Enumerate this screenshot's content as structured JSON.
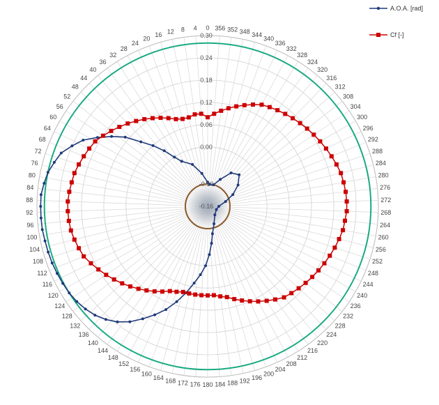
{
  "chart_data": {
    "type": "polar-line",
    "angle_ticks": [
      "0",
      "4",
      "8",
      "12",
      "16",
      "20",
      "24",
      "28",
      "32",
      "36",
      "40",
      "44",
      "48",
      "52",
      "56",
      "60",
      "64",
      "68",
      "72",
      "76",
      "80",
      "84",
      "88",
      "92",
      "96",
      "100",
      "104",
      "108",
      "112",
      "116",
      "120",
      "124",
      "128",
      "132",
      "136",
      "140",
      "144",
      "148",
      "152",
      "156",
      "160",
      "164",
      "168",
      "172",
      "176",
      "180",
      "184",
      "188",
      "192",
      "196",
      "200",
      "204",
      "208",
      "212",
      "216",
      "220",
      "224",
      "228",
      "232",
      "236",
      "240",
      "244",
      "248",
      "252",
      "256",
      "260",
      "264",
      "268",
      "272",
      "276",
      "280",
      "284",
      "288",
      "292",
      "296",
      "300",
      "304",
      "308",
      "312",
      "316",
      "320",
      "324",
      "328",
      "332",
      "336",
      "340",
      "344",
      "348",
      "352",
      "356"
    ],
    "radial_ticks": [
      "-0.16",
      "-0.10",
      "0.00",
      "0.06",
      "0.12",
      "0.18",
      "0.24",
      "0.30"
    ],
    "radial_range": [
      -0.16,
      0.3
    ],
    "angle_direction": "counterclockwise",
    "angle_zero": "top",
    "grid": true,
    "legend_position": "top-right",
    "series": [
      {
        "name": "A.O.A. [rad]",
        "color": "#1f3a7a",
        "marker": "circle-small",
        "points": [
          [
            0,
            -0.095
          ],
          [
            10,
            -0.07
          ],
          [
            20,
            -0.04
          ],
          [
            30,
            -0.02
          ],
          [
            34,
            0.0
          ],
          [
            38,
            0.03
          ],
          [
            42,
            0.06
          ],
          [
            46,
            0.09
          ],
          [
            50,
            0.13
          ],
          [
            54,
            0.16
          ],
          [
            58,
            0.19
          ],
          [
            62,
            0.22
          ],
          [
            66,
            0.24
          ],
          [
            70,
            0.26
          ],
          [
            74,
            0.27
          ],
          [
            78,
            0.28
          ],
          [
            82,
            0.285
          ],
          [
            86,
            0.29
          ],
          [
            90,
            0.29
          ],
          [
            94,
            0.29
          ],
          [
            98,
            0.29
          ],
          [
            102,
            0.288
          ],
          [
            106,
            0.287
          ],
          [
            110,
            0.286
          ],
          [
            114,
            0.284
          ],
          [
            118,
            0.282
          ],
          [
            122,
            0.28
          ],
          [
            126,
            0.276
          ],
          [
            130,
            0.27
          ],
          [
            134,
            0.262
          ],
          [
            138,
            0.25
          ],
          [
            142,
            0.235
          ],
          [
            146,
            0.215
          ],
          [
            150,
            0.19
          ],
          [
            154,
            0.165
          ],
          [
            158,
            0.14
          ],
          [
            162,
            0.11
          ],
          [
            166,
            0.08
          ],
          [
            170,
            0.05
          ],
          [
            174,
            0.025
          ],
          [
            178,
            0.0
          ],
          [
            182,
            -0.03
          ],
          [
            186,
            -0.06
          ],
          [
            190,
            -0.085
          ],
          [
            200,
            -0.11
          ],
          [
            220,
            -0.13
          ],
          [
            250,
            -0.135
          ],
          [
            270,
            -0.13
          ],
          [
            285,
            -0.11
          ],
          [
            295,
            -0.085
          ],
          [
            305,
            -0.06
          ],
          [
            315,
            -0.04
          ],
          [
            325,
            -0.05
          ],
          [
            335,
            -0.08
          ],
          [
            345,
            -0.1
          ],
          [
            355,
            -0.1
          ],
          [
            360,
            -0.095
          ]
        ]
      },
      {
        "name": "Cf [-]",
        "color": "#cc0000",
        "marker": "square",
        "points": [
          [
            0,
            0.08
          ],
          [
            4,
            0.09
          ],
          [
            8,
            0.09
          ],
          [
            12,
            0.085
          ],
          [
            16,
            0.085
          ],
          [
            20,
            0.09
          ],
          [
            24,
            0.1
          ],
          [
            28,
            0.11
          ],
          [
            32,
            0.12
          ],
          [
            36,
            0.13
          ],
          [
            40,
            0.14
          ],
          [
            44,
            0.15
          ],
          [
            48,
            0.16
          ],
          [
            52,
            0.17
          ],
          [
            56,
            0.18
          ],
          [
            60,
            0.19
          ],
          [
            64,
            0.195
          ],
          [
            68,
            0.2
          ],
          [
            72,
            0.205
          ],
          [
            76,
            0.21
          ],
          [
            80,
            0.212
          ],
          [
            84,
            0.215
          ],
          [
            88,
            0.217
          ],
          [
            92,
            0.217
          ],
          [
            96,
            0.216
          ],
          [
            100,
            0.214
          ],
          [
            104,
            0.21
          ],
          [
            108,
            0.205
          ],
          [
            112,
            0.2
          ],
          [
            116,
            0.19
          ],
          [
            120,
            0.18
          ],
          [
            124,
            0.17
          ],
          [
            128,
            0.16
          ],
          [
            132,
            0.15
          ],
          [
            136,
            0.14
          ],
          [
            140,
            0.13
          ],
          [
            144,
            0.12
          ],
          [
            148,
            0.11
          ],
          [
            152,
            0.1
          ],
          [
            156,
            0.09
          ],
          [
            160,
            0.085
          ],
          [
            164,
            0.08
          ],
          [
            168,
            0.08
          ],
          [
            172,
            0.08
          ],
          [
            176,
            0.08
          ],
          [
            180,
            0.08
          ],
          [
            184,
            0.08
          ],
          [
            188,
            0.085
          ],
          [
            192,
            0.09
          ],
          [
            196,
            0.1
          ],
          [
            200,
            0.11
          ],
          [
            204,
            0.12
          ],
          [
            208,
            0.13
          ],
          [
            212,
            0.14
          ],
          [
            216,
            0.15
          ],
          [
            220,
            0.16
          ],
          [
            224,
            0.165
          ],
          [
            228,
            0.17
          ],
          [
            232,
            0.175
          ],
          [
            236,
            0.18
          ],
          [
            240,
            0.185
          ],
          [
            244,
            0.19
          ],
          [
            248,
            0.195
          ],
          [
            252,
            0.2
          ],
          [
            256,
            0.205
          ],
          [
            260,
            0.21
          ],
          [
            264,
            0.212
          ],
          [
            268,
            0.215
          ],
          [
            272,
            0.215
          ],
          [
            276,
            0.214
          ],
          [
            280,
            0.212
          ],
          [
            284,
            0.21
          ],
          [
            288,
            0.205
          ],
          [
            292,
            0.2
          ],
          [
            296,
            0.195
          ],
          [
            300,
            0.19
          ],
          [
            304,
            0.185
          ],
          [
            308,
            0.18
          ],
          [
            312,
            0.175
          ],
          [
            316,
            0.17
          ],
          [
            320,
            0.165
          ],
          [
            324,
            0.16
          ],
          [
            328,
            0.155
          ],
          [
            332,
            0.15
          ],
          [
            336,
            0.14
          ],
          [
            340,
            0.13
          ],
          [
            344,
            0.12
          ],
          [
            348,
            0.11
          ],
          [
            352,
            0.1
          ],
          [
            356,
            0.09
          ]
        ]
      }
    ],
    "reference_rings": [
      {
        "value": 0.28,
        "color": "#1aaa82"
      },
      {
        "value": -0.1,
        "color": "#8b5a2b"
      }
    ]
  }
}
